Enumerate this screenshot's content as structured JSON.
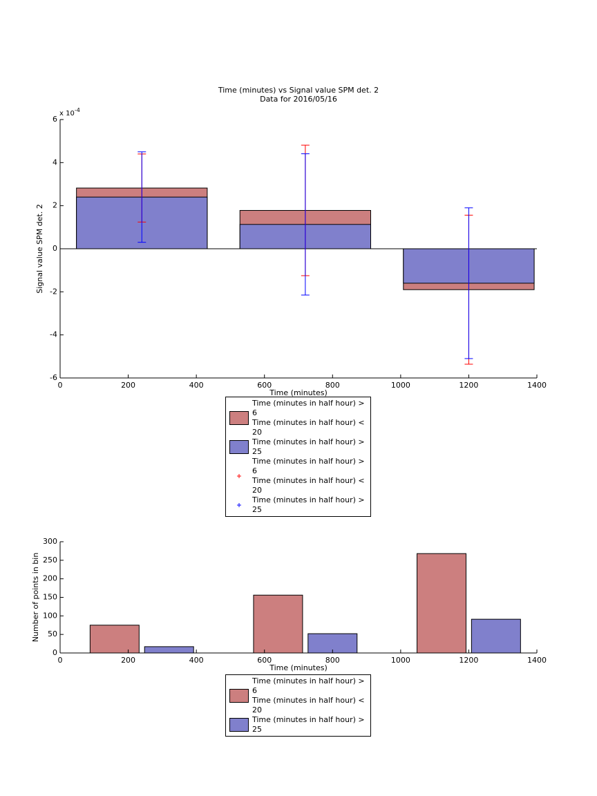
{
  "chart_data": [
    {
      "type": "bar",
      "bar_mode": "overlay",
      "title": "Time (minutes) vs Signal value SPM det. 2",
      "subtitle": "Data for 2016/05/16",
      "x_label": "Time (minutes)",
      "y_label": "Signal value SPM det. 2",
      "y_scale_label": "x 10",
      "y_scale_exponent": "-4",
      "x": [
        240,
        720,
        1200
      ],
      "series": [
        {
          "name": "Time (minutes in half hour) > 6\nTime (minutes in half hour) < 20",
          "color": "#cc7f7f",
          "error_color": "#ff0000",
          "values": [
            2.82,
            1.78,
            -1.9
          ],
          "errors": [
            1.58,
            3.03,
            3.46
          ]
        },
        {
          "name": "Time (minutes in half hour) > 25",
          "color": "#8080cc",
          "error_color": "#0000ff",
          "values": [
            2.4,
            1.13,
            -1.6
          ],
          "errors": [
            2.1,
            3.28,
            3.5
          ]
        }
      ],
      "xlim": [
        0,
        1400
      ],
      "xticks": [
        0,
        200,
        400,
        600,
        800,
        1000,
        1200,
        1400
      ],
      "ylim": [
        -6,
        6
      ],
      "yticks": [
        -6,
        -4,
        -2,
        0,
        2,
        4,
        6
      ],
      "legend": "bottom",
      "error_legend": true
    },
    {
      "type": "bar",
      "bar_mode": "group",
      "x_label": "Time (minutes)",
      "y_label": "Number of points in bin",
      "x": [
        240,
        720,
        1200
      ],
      "series": [
        {
          "name": "Time (minutes in half hour) > 6\nTime (minutes in half hour) < 20",
          "color": "#cc7f7f",
          "values": [
            75,
            156,
            268
          ]
        },
        {
          "name": "Time (minutes in half hour) > 25",
          "color": "#8080cc",
          "values": [
            17,
            52,
            91
          ]
        }
      ],
      "xlim": [
        0,
        1400
      ],
      "xticks": [
        0,
        200,
        400,
        600,
        800,
        1000,
        1200,
        1400
      ],
      "ylim": [
        0,
        300
      ],
      "yticks": [
        0,
        50,
        100,
        150,
        200,
        250,
        300
      ],
      "legend": "bottom"
    }
  ]
}
